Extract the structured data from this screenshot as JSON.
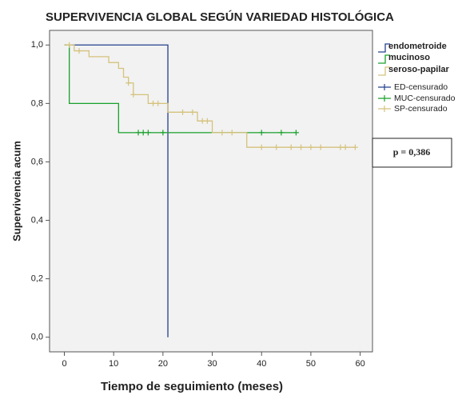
{
  "chart_data": {
    "type": "km",
    "title": "SUPERVIVENCIA GLOBAL SEGÚN VARIEDAD HISTOLÓGICA",
    "x_label": "Tiempo de seguimiento (meses)",
    "y_label": "Supervivencia acum",
    "annotation": "p = 0,386",
    "xlim": [
      -3,
      62.5
    ],
    "ylim": [
      -0.05,
      1.05
    ],
    "xticks": [
      0,
      10,
      20,
      30,
      40,
      50,
      60
    ],
    "yticks": [
      {
        "value": 0,
        "label": "0,0"
      },
      {
        "value": 0.2,
        "label": "0,2"
      },
      {
        "value": 0.4,
        "label": "0,4"
      },
      {
        "value": 0.6,
        "label": "0,6"
      },
      {
        "value": 0.8,
        "label": "0,8"
      },
      {
        "value": 1,
        "label": "1,0"
      }
    ],
    "series": [
      {
        "name": "endometroide",
        "kind": "step",
        "color": "#24408e",
        "x": [
          0,
          21
        ],
        "values": [
          1,
          0
        ]
      },
      {
        "name": "mucinoso",
        "kind": "step",
        "color": "#18a02a",
        "x": [
          0,
          1,
          11,
          47
        ],
        "values": [
          1,
          0.8,
          0.7,
          0.7
        ]
      },
      {
        "name": "seroso-papilar",
        "kind": "step",
        "color": "#d5c27c",
        "x": [
          0,
          2,
          5,
          9,
          11,
          12,
          13,
          14,
          17,
          21,
          27,
          30,
          37,
          59
        ],
        "values": [
          1,
          0.98,
          0.96,
          0.94,
          0.92,
          0.89,
          0.87,
          0.83,
          0.8,
          0.77,
          0.74,
          0.7,
          0.65,
          0.65
        ]
      },
      {
        "name": "ED-censurado",
        "kind": "censor",
        "color": "#24408e",
        "x": [],
        "values": []
      },
      {
        "name": "MUC-censurado",
        "kind": "censor",
        "color": "#18a02a",
        "x": [
          15,
          16,
          17,
          20,
          40,
          44,
          47
        ],
        "values": [
          0.7,
          0.7,
          0.7,
          0.7,
          0.7,
          0.7,
          0.7
        ]
      },
      {
        "name": "SP-censurado",
        "kind": "censor",
        "color": "#d5c27c",
        "x": [
          1,
          3,
          13,
          14,
          18,
          19,
          24,
          26,
          28,
          29,
          32,
          34,
          40,
          43,
          46,
          48,
          50,
          52,
          56,
          57,
          59
        ],
        "values": [
          1,
          0.98,
          0.87,
          0.83,
          0.8,
          0.8,
          0.77,
          0.77,
          0.74,
          0.74,
          0.7,
          0.7,
          0.65,
          0.65,
          0.65,
          0.65,
          0.65,
          0.65,
          0.65,
          0.65,
          0.65
        ]
      }
    ]
  }
}
